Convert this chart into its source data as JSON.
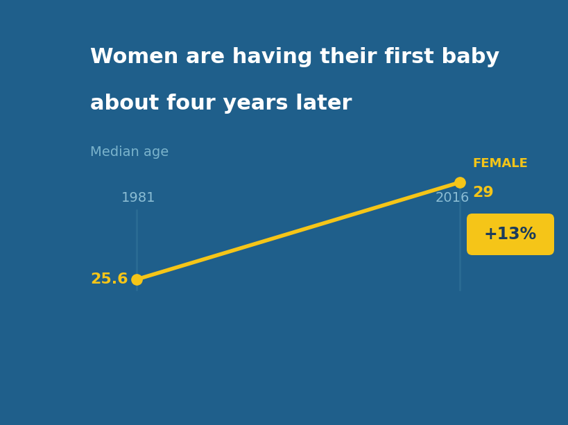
{
  "background_color": "#1f5f8b",
  "title_line1": "Women are having their first baby",
  "title_line2": "about four years later",
  "subtitle": "Median age",
  "title_color": "#ffffff",
  "subtitle_color": "#7ab3cc",
  "year_1981": "1981",
  "year_2016": "2016",
  "value_1981": "25.6",
  "value_2016": "29",
  "line_color": "#f5c518",
  "dot_color": "#f5c518",
  "year_label_color": "#8bbdd4",
  "value_label_color": "#f5c518",
  "label_female": "FEMALE",
  "label_female_color": "#f5c518",
  "label_pct": "+13%",
  "label_pct_color": "#1a3a5c",
  "label_pct_bg": "#f5c518",
  "vertical_line_color": "#2d6e96",
  "title_fontsize": 22,
  "subtitle_fontsize": 14,
  "year_fontsize": 14,
  "value_label_fontsize": 16,
  "female_fontsize": 13,
  "pct_fontsize": 17
}
